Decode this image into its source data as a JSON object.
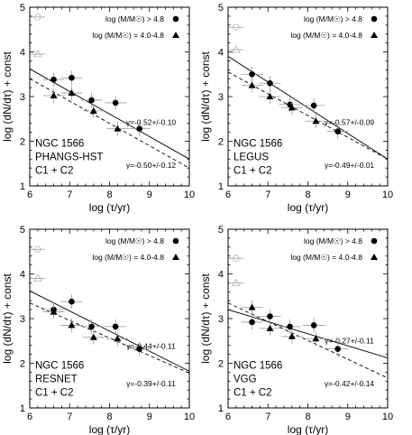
{
  "chart_data": [
    {
      "type": "scatter",
      "title": "",
      "xlabel": "log (τ/yr)",
      "ylabel": "log (dN/dτ) + const",
      "xlim": [
        6,
        10
      ],
      "ylim": [
        1,
        5
      ],
      "xticks": [
        "6",
        "7",
        "8",
        "9",
        "10"
      ],
      "yticks": [
        "1",
        "2",
        "3",
        "4",
        "5"
      ],
      "annotation": [
        "NGC 1566",
        "PHANGS-HST",
        "C1 + C2"
      ],
      "legend_position": "top-right",
      "series": [
        {
          "name": "log (M/M☉) > 4.8",
          "marker": "circle",
          "x": [
            6.6,
            7.05,
            7.55,
            8.15,
            8.75
          ],
          "y": [
            3.38,
            3.42,
            2.92,
            2.86,
            2.28
          ]
        },
        {
          "name": "log (M/M☉) = 4.0-4.8",
          "marker": "triangle",
          "x": [
            6.6,
            7.05,
            7.6,
            8.2
          ],
          "y": [
            3.02,
            3.08,
            2.68,
            2.28
          ]
        },
        {
          "name": "",
          "marker": "open-circle",
          "x": [
            6.2
          ],
          "y": [
            4.78
          ]
        },
        {
          "name": "",
          "marker": "open-triangle",
          "x": [
            6.2
          ],
          "y": [
            3.95
          ]
        }
      ],
      "fits": [
        {
          "style": "solid",
          "label": "γ=-0.52+/-0.10",
          "x": [
            6,
            10
          ],
          "y": [
            3.62,
            1.6
          ]
        },
        {
          "style": "dashed",
          "label": "γ=-0.50+/-0.12",
          "x": [
            6,
            10
          ],
          "y": [
            3.4,
            1.4
          ]
        }
      ]
    },
    {
      "type": "scatter",
      "title": "",
      "xlabel": "log (τ/yr)",
      "ylabel": "log (dN/dτ) + const",
      "xlim": [
        6,
        10
      ],
      "ylim": [
        1,
        5
      ],
      "xticks": [
        "6",
        "7",
        "8",
        "9",
        "10"
      ],
      "yticks": [
        "1",
        "2",
        "3",
        "4",
        "5"
      ],
      "annotation": [
        "NGC 1566",
        "LEGUS",
        "C1 + C2"
      ],
      "legend_position": "top-right",
      "series": [
        {
          "name": "log (M/M☉) > 4.8",
          "marker": "circle",
          "x": [
            6.6,
            7.05,
            7.55,
            8.15,
            8.75
          ],
          "y": [
            3.5,
            3.3,
            2.82,
            2.8,
            2.22
          ]
        },
        {
          "name": "log (M/M☉) = 4.0-4.8",
          "marker": "triangle",
          "x": [
            6.6,
            7.05,
            7.6,
            8.2
          ],
          "y": [
            3.25,
            3.0,
            2.75,
            2.45
          ]
        },
        {
          "name": "",
          "marker": "open-circle",
          "x": [
            6.2
          ],
          "y": [
            4.55
          ]
        },
        {
          "name": "",
          "marker": "open-triangle",
          "x": [
            6.2
          ],
          "y": [
            4.05
          ]
        }
      ],
      "fits": [
        {
          "style": "solid",
          "label": "γ=-0.57+/-0.09",
          "x": [
            6,
            10
          ],
          "y": [
            3.9,
            1.6
          ]
        },
        {
          "style": "dashed",
          "label": "γ=-0.49+/-0.01",
          "x": [
            6,
            10
          ],
          "y": [
            3.55,
            1.6
          ]
        }
      ]
    },
    {
      "type": "scatter",
      "title": "",
      "xlabel": "log (τ/yr)",
      "ylabel": "log (dN/dτ) + const",
      "xlim": [
        6,
        10
      ],
      "ylim": [
        1,
        5
      ],
      "xticks": [
        "6",
        "7",
        "8",
        "9",
        "10"
      ],
      "yticks": [
        "1",
        "2",
        "3",
        "4",
        "5"
      ],
      "annotation": [
        "NGC 1566",
        "RESNET",
        "C1 + C2"
      ],
      "legend_position": "top-right",
      "series": [
        {
          "name": "log (M/M☉) > 4.8",
          "marker": "circle",
          "x": [
            6.6,
            7.05,
            7.55,
            8.15,
            8.75
          ],
          "y": [
            3.2,
            3.38,
            2.82,
            2.82,
            2.32
          ]
        },
        {
          "name": "log (M/M☉) = 4.0-4.8",
          "marker": "triangle",
          "x": [
            6.6,
            7.05,
            7.6,
            8.2
          ],
          "y": [
            3.15,
            2.85,
            2.58,
            2.55
          ]
        },
        {
          "name": "",
          "marker": "open-circle",
          "x": [
            6.2
          ],
          "y": [
            4.55
          ]
        },
        {
          "name": "",
          "marker": "open-triangle",
          "x": [
            6.2
          ],
          "y": [
            3.9
          ]
        }
      ],
      "fits": [
        {
          "style": "solid",
          "label": "γ=-0.44+/-0.11",
          "x": [
            6,
            10
          ],
          "y": [
            3.62,
            1.82
          ]
        },
        {
          "style": "dashed",
          "label": "γ=-0.39+/-0.11",
          "x": [
            6,
            10
          ],
          "y": [
            3.35,
            1.78
          ]
        }
      ]
    },
    {
      "type": "scatter",
      "title": "",
      "xlabel": "log (τ/yr)",
      "ylabel": "log (dN/dτ) + const",
      "xlim": [
        6,
        10
      ],
      "ylim": [
        1,
        5
      ],
      "xticks": [
        "6",
        "7",
        "8",
        "9",
        "10"
      ],
      "yticks": [
        "1",
        "2",
        "3",
        "4",
        "5"
      ],
      "annotation": [
        "NGC 1566",
        "VGG",
        "C1 + C2"
      ],
      "legend_position": "top-right",
      "series": [
        {
          "name": "log (M/M☉) > 4.8",
          "marker": "circle",
          "x": [
            6.6,
            7.05,
            7.55,
            8.15,
            8.75
          ],
          "y": [
            2.92,
            3.05,
            2.82,
            2.85,
            2.32
          ]
        },
        {
          "name": "log (M/M☉) = 4.0-4.8",
          "marker": "triangle",
          "x": [
            6.6,
            7.05,
            7.6,
            8.2
          ],
          "y": [
            3.25,
            2.78,
            2.6,
            2.55
          ]
        },
        {
          "name": "",
          "marker": "open-circle",
          "x": [
            6.2
          ],
          "y": [
            4.35
          ]
        },
        {
          "name": "",
          "marker": "open-triangle",
          "x": [
            6.2
          ],
          "y": [
            3.8
          ]
        }
      ],
      "fits": [
        {
          "style": "solid",
          "label": "γ=-0.27+/-0.11",
          "x": [
            6,
            10
          ],
          "y": [
            3.2,
            2.12
          ]
        },
        {
          "style": "dashed",
          "label": "γ=-0.42+/-0.14",
          "x": [
            6,
            10
          ],
          "y": [
            3.35,
            1.67
          ]
        }
      ]
    }
  ]
}
